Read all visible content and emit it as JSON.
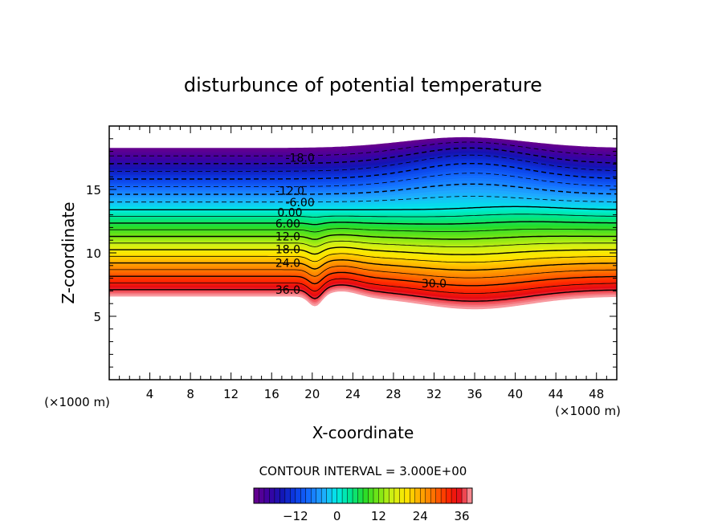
{
  "chart_data": {
    "type": "contour",
    "title": "disturbunce of potential temperature",
    "xlabel": "X-coordinate",
    "ylabel": "Z-coordinate",
    "x_unit_left": "(×1000 m)",
    "x_unit_right": "(×1000 m)",
    "xlim": [
      0,
      50
    ],
    "ylim": [
      0,
      20
    ],
    "xticks": [
      4,
      8,
      12,
      16,
      20,
      24,
      28,
      32,
      36,
      40,
      44,
      48
    ],
    "yticks": [
      5,
      10,
      15
    ],
    "contour_interval_text": "CONTOUR INTERVAL = 3.000E+00",
    "value_range": [
      -24,
      39
    ],
    "contour_labels": [
      {
        "text": "-18.0",
        "x": 18.8,
        "z": 17.5
      },
      {
        "text": "-12.0",
        "x": 17.8,
        "z": 14.9
      },
      {
        "text": "-6.00",
        "x": 18.8,
        "z": 14.0
      },
      {
        "text": "0.00",
        "x": 17.8,
        "z": 13.2
      },
      {
        "text": "6.00",
        "x": 17.6,
        "z": 12.3
      },
      {
        "text": "12.0",
        "x": 17.6,
        "z": 11.3
      },
      {
        "text": "18.0",
        "x": 17.6,
        "z": 10.3
      },
      {
        "text": "24.0",
        "x": 17.6,
        "z": 9.2
      },
      {
        "text": "36.0",
        "x": 17.6,
        "z": 7.1
      },
      {
        "text": "30.0",
        "x": 32.0,
        "z": 7.6
      }
    ],
    "colorbar": {
      "ticks": [
        -12,
        0,
        12,
        24,
        36
      ],
      "tick_labels": [
        "−12",
        "0",
        "12",
        "24",
        "36"
      ]
    }
  }
}
